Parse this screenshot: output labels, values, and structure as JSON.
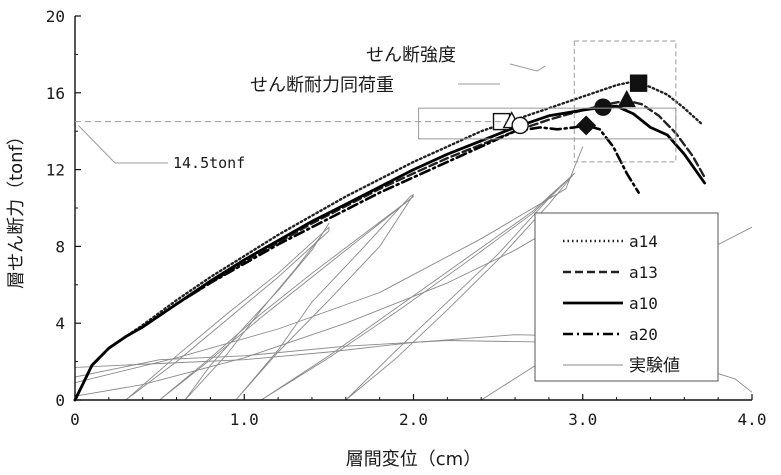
{
  "chart_data": {
    "type": "line",
    "xlabel": "層間変位（cm）",
    "ylabel": "層せん断力（tonf）",
    "xlim": [
      0,
      4.0
    ],
    "ylim": [
      0,
      20
    ],
    "xticks": [
      "0",
      "1.0",
      "2.0",
      "3.0",
      "4.0"
    ],
    "yticks": [
      "0",
      "4",
      "8",
      "12",
      "16",
      "20"
    ],
    "grid": "none",
    "legend_position": "right",
    "annotations": [
      {
        "text": "せん断強度"
      },
      {
        "text": "せん断耐力同荷重"
      },
      {
        "text": "14.5tonf",
        "y": 14.5
      }
    ],
    "series": [
      {
        "name": "a14",
        "style": "dotted",
        "color": "#222222",
        "x": [
          0,
          0.05,
          0.1,
          0.2,
          0.3,
          0.4,
          0.6,
          0.8,
          1.0,
          1.2,
          1.4,
          1.6,
          1.8,
          2.0,
          2.2,
          2.4,
          2.6,
          2.8,
          3.0,
          3.1,
          3.2,
          3.28,
          3.33,
          3.4,
          3.5,
          3.6,
          3.7
        ],
        "y": [
          0,
          0.9,
          1.8,
          2.7,
          3.3,
          3.9,
          5.2,
          6.4,
          7.5,
          8.6,
          9.6,
          10.6,
          11.5,
          12.4,
          13.2,
          14.0,
          14.6,
          15.2,
          15.8,
          16.1,
          16.4,
          16.55,
          16.5,
          16.3,
          15.9,
          15.2,
          14.4
        ]
      },
      {
        "name": "a13",
        "style": "dashed",
        "color": "#222222",
        "x": [
          0,
          0.05,
          0.1,
          0.2,
          0.3,
          0.4,
          0.6,
          0.8,
          1.0,
          1.2,
          1.4,
          1.6,
          1.8,
          2.0,
          2.2,
          2.4,
          2.6,
          2.8,
          3.0,
          3.1,
          3.2,
          3.26,
          3.35,
          3.45,
          3.55,
          3.65,
          3.72
        ],
        "y": [
          0,
          0.9,
          1.8,
          2.7,
          3.3,
          3.8,
          5.0,
          6.1,
          7.2,
          8.2,
          9.2,
          10.1,
          11.0,
          11.8,
          12.6,
          13.3,
          14.0,
          14.6,
          15.1,
          15.3,
          15.5,
          15.6,
          15.4,
          14.8,
          13.9,
          12.7,
          11.6
        ]
      },
      {
        "name": "a10",
        "style": "solid",
        "color": "#000000",
        "x": [
          0,
          0.05,
          0.1,
          0.2,
          0.3,
          0.4,
          0.6,
          0.8,
          1.0,
          1.2,
          1.4,
          1.6,
          1.8,
          2.0,
          2.2,
          2.4,
          2.6,
          2.8,
          3.0,
          3.12,
          3.2,
          3.3,
          3.4,
          3.5,
          3.6,
          3.72
        ],
        "y": [
          0,
          0.9,
          1.8,
          2.7,
          3.3,
          3.8,
          5.0,
          6.2,
          7.3,
          8.3,
          9.3,
          10.2,
          11.1,
          12.0,
          12.8,
          13.5,
          14.2,
          14.8,
          15.1,
          15.25,
          15.3,
          14.9,
          14.2,
          13.8,
          12.8,
          11.3
        ]
      },
      {
        "name": "a20",
        "style": "dashdot",
        "color": "#000000",
        "x": [
          0,
          0.05,
          0.1,
          0.2,
          0.3,
          0.4,
          0.6,
          0.8,
          1.0,
          1.2,
          1.4,
          1.6,
          1.8,
          2.0,
          2.2,
          2.4,
          2.6,
          2.75,
          2.85,
          2.95,
          3.02,
          3.1,
          3.18,
          3.26,
          3.33
        ],
        "y": [
          0,
          0.9,
          1.8,
          2.7,
          3.3,
          3.8,
          5.0,
          6.1,
          7.1,
          8.1,
          9.0,
          9.9,
          10.8,
          11.6,
          12.4,
          13.2,
          14.0,
          14.2,
          14.1,
          14.2,
          14.3,
          14.1,
          13.2,
          11.8,
          10.8
        ]
      },
      {
        "name": "実験値",
        "style": "thin",
        "color": "#8a8a8a",
        "loops": [
          {
            "x": [
              0.65,
              0.8,
              1.0,
              1.2,
              1.4,
              1.5,
              1.45,
              1.3,
              1.1,
              0.9,
              0.65
            ],
            "y": [
              0,
              1.8,
              3.8,
              5.7,
              7.8,
              9.2,
              8.5,
              6.8,
              4.7,
              2.4,
              0
            ]
          },
          {
            "x": [
              0.3,
              0.6,
              0.9,
              1.2,
              1.5,
              1.5,
              1.2,
              0.9,
              0.6,
              0.3
            ],
            "y": [
              0,
              2.0,
              4.2,
              6.4,
              8.8,
              9.0,
              6.6,
              4.5,
              2.3,
              0
            ]
          },
          {
            "x": [
              0.95,
              1.2,
              1.5,
              1.8,
              2.0,
              1.98,
              1.7,
              1.4,
              1.2,
              0.95
            ],
            "y": [
              0,
              2.5,
              5.2,
              8.0,
              10.7,
              10.6,
              7.9,
              5.1,
              2.6,
              0
            ]
          },
          {
            "x": [
              0.5,
              0.8,
              1.1,
              1.4,
              1.7,
              2.0,
              1.7,
              1.4,
              1.1,
              0.8,
              0.5
            ],
            "y": [
              0,
              2.2,
              4.5,
              6.6,
              8.6,
              10.6,
              8.5,
              6.4,
              4.3,
              2.1,
              0
            ]
          },
          {
            "x": [
              1.6,
              1.9,
              2.2,
              2.5,
              2.8,
              2.95,
              2.8,
              2.5,
              2.2,
              1.9,
              1.6
            ],
            "y": [
              0,
              2.6,
              5.1,
              7.6,
              10.5,
              11.8,
              10.2,
              7.3,
              4.7,
              2.2,
              0
            ]
          },
          {
            "x": [
              1.1,
              1.5,
              1.9,
              2.3,
              2.7,
              2.95,
              2.7,
              2.3,
              1.9,
              1.5,
              1.1
            ],
            "y": [
              0,
              2.3,
              4.8,
              7.3,
              9.8,
              11.8,
              9.7,
              7.1,
              4.6,
              2.2,
              0
            ]
          },
          {
            "x": [
              0.0,
              0.6,
              1.2,
              1.8,
              2.4,
              2.9,
              3.0
            ],
            "y": [
              0.9,
              2.2,
              3.7,
              5.6,
              8.4,
              11.0,
              13.2
            ]
          },
          {
            "x": [
              0.0,
              0.5,
              1.0,
              1.6,
              2.2,
              2.9,
              3.5,
              3.9,
              4.0
            ],
            "y": [
              1.2,
              2.1,
              2.3,
              2.8,
              3.1,
              3.0,
              2.2,
              1.1,
              0.4
            ]
          },
          {
            "x": [
              0.0,
              0.5,
              1.0,
              1.5,
              2.0,
              2.6,
              3.1,
              3.5,
              3.7
            ],
            "y": [
              1.7,
              1.9,
              2.1,
              2.5,
              3.0,
              3.4,
              3.3,
              2.6,
              1.8
            ]
          },
          {
            "x": [
              2.4,
              2.9,
              3.2,
              3.5,
              3.8,
              4.0
            ],
            "y": [
              0,
              2.8,
              4.8,
              6.6,
              8.1,
              9.0
            ]
          },
          {
            "x": [
              0.0,
              0.4,
              1.0,
              1.6,
              2.2,
              2.6,
              2.85
            ],
            "y": [
              0.2,
              0.8,
              2.2,
              4.0,
              6.1,
              7.8,
              9.1
            ]
          }
        ]
      }
    ],
    "markers": [
      {
        "series": "a14",
        "x": 3.33,
        "y": 16.5,
        "shape": "square",
        "fill": "#111111"
      },
      {
        "series": "a13",
        "x": 3.26,
        "y": 15.6,
        "shape": "triangle",
        "fill": "#111111"
      },
      {
        "series": "a10",
        "x": 3.12,
        "y": 15.25,
        "shape": "circle",
        "fill": "#111111"
      },
      {
        "series": "a20",
        "x": 3.02,
        "y": 14.3,
        "shape": "diamond",
        "fill": "#111111"
      },
      {
        "series": "a14",
        "x": 2.52,
        "y": 14.5,
        "shape": "square",
        "fill": "#ffffff"
      },
      {
        "series": "a13",
        "x": 2.58,
        "y": 14.5,
        "shape": "triangle",
        "fill": "#ffffff"
      },
      {
        "series": "a10",
        "x": 2.63,
        "y": 14.3,
        "shape": "circle",
        "fill": "#ffffff"
      }
    ],
    "colors": {
      "ink": "#111111",
      "experimental": "#8a8a8a",
      "reference": "#9a9a9a"
    }
  }
}
